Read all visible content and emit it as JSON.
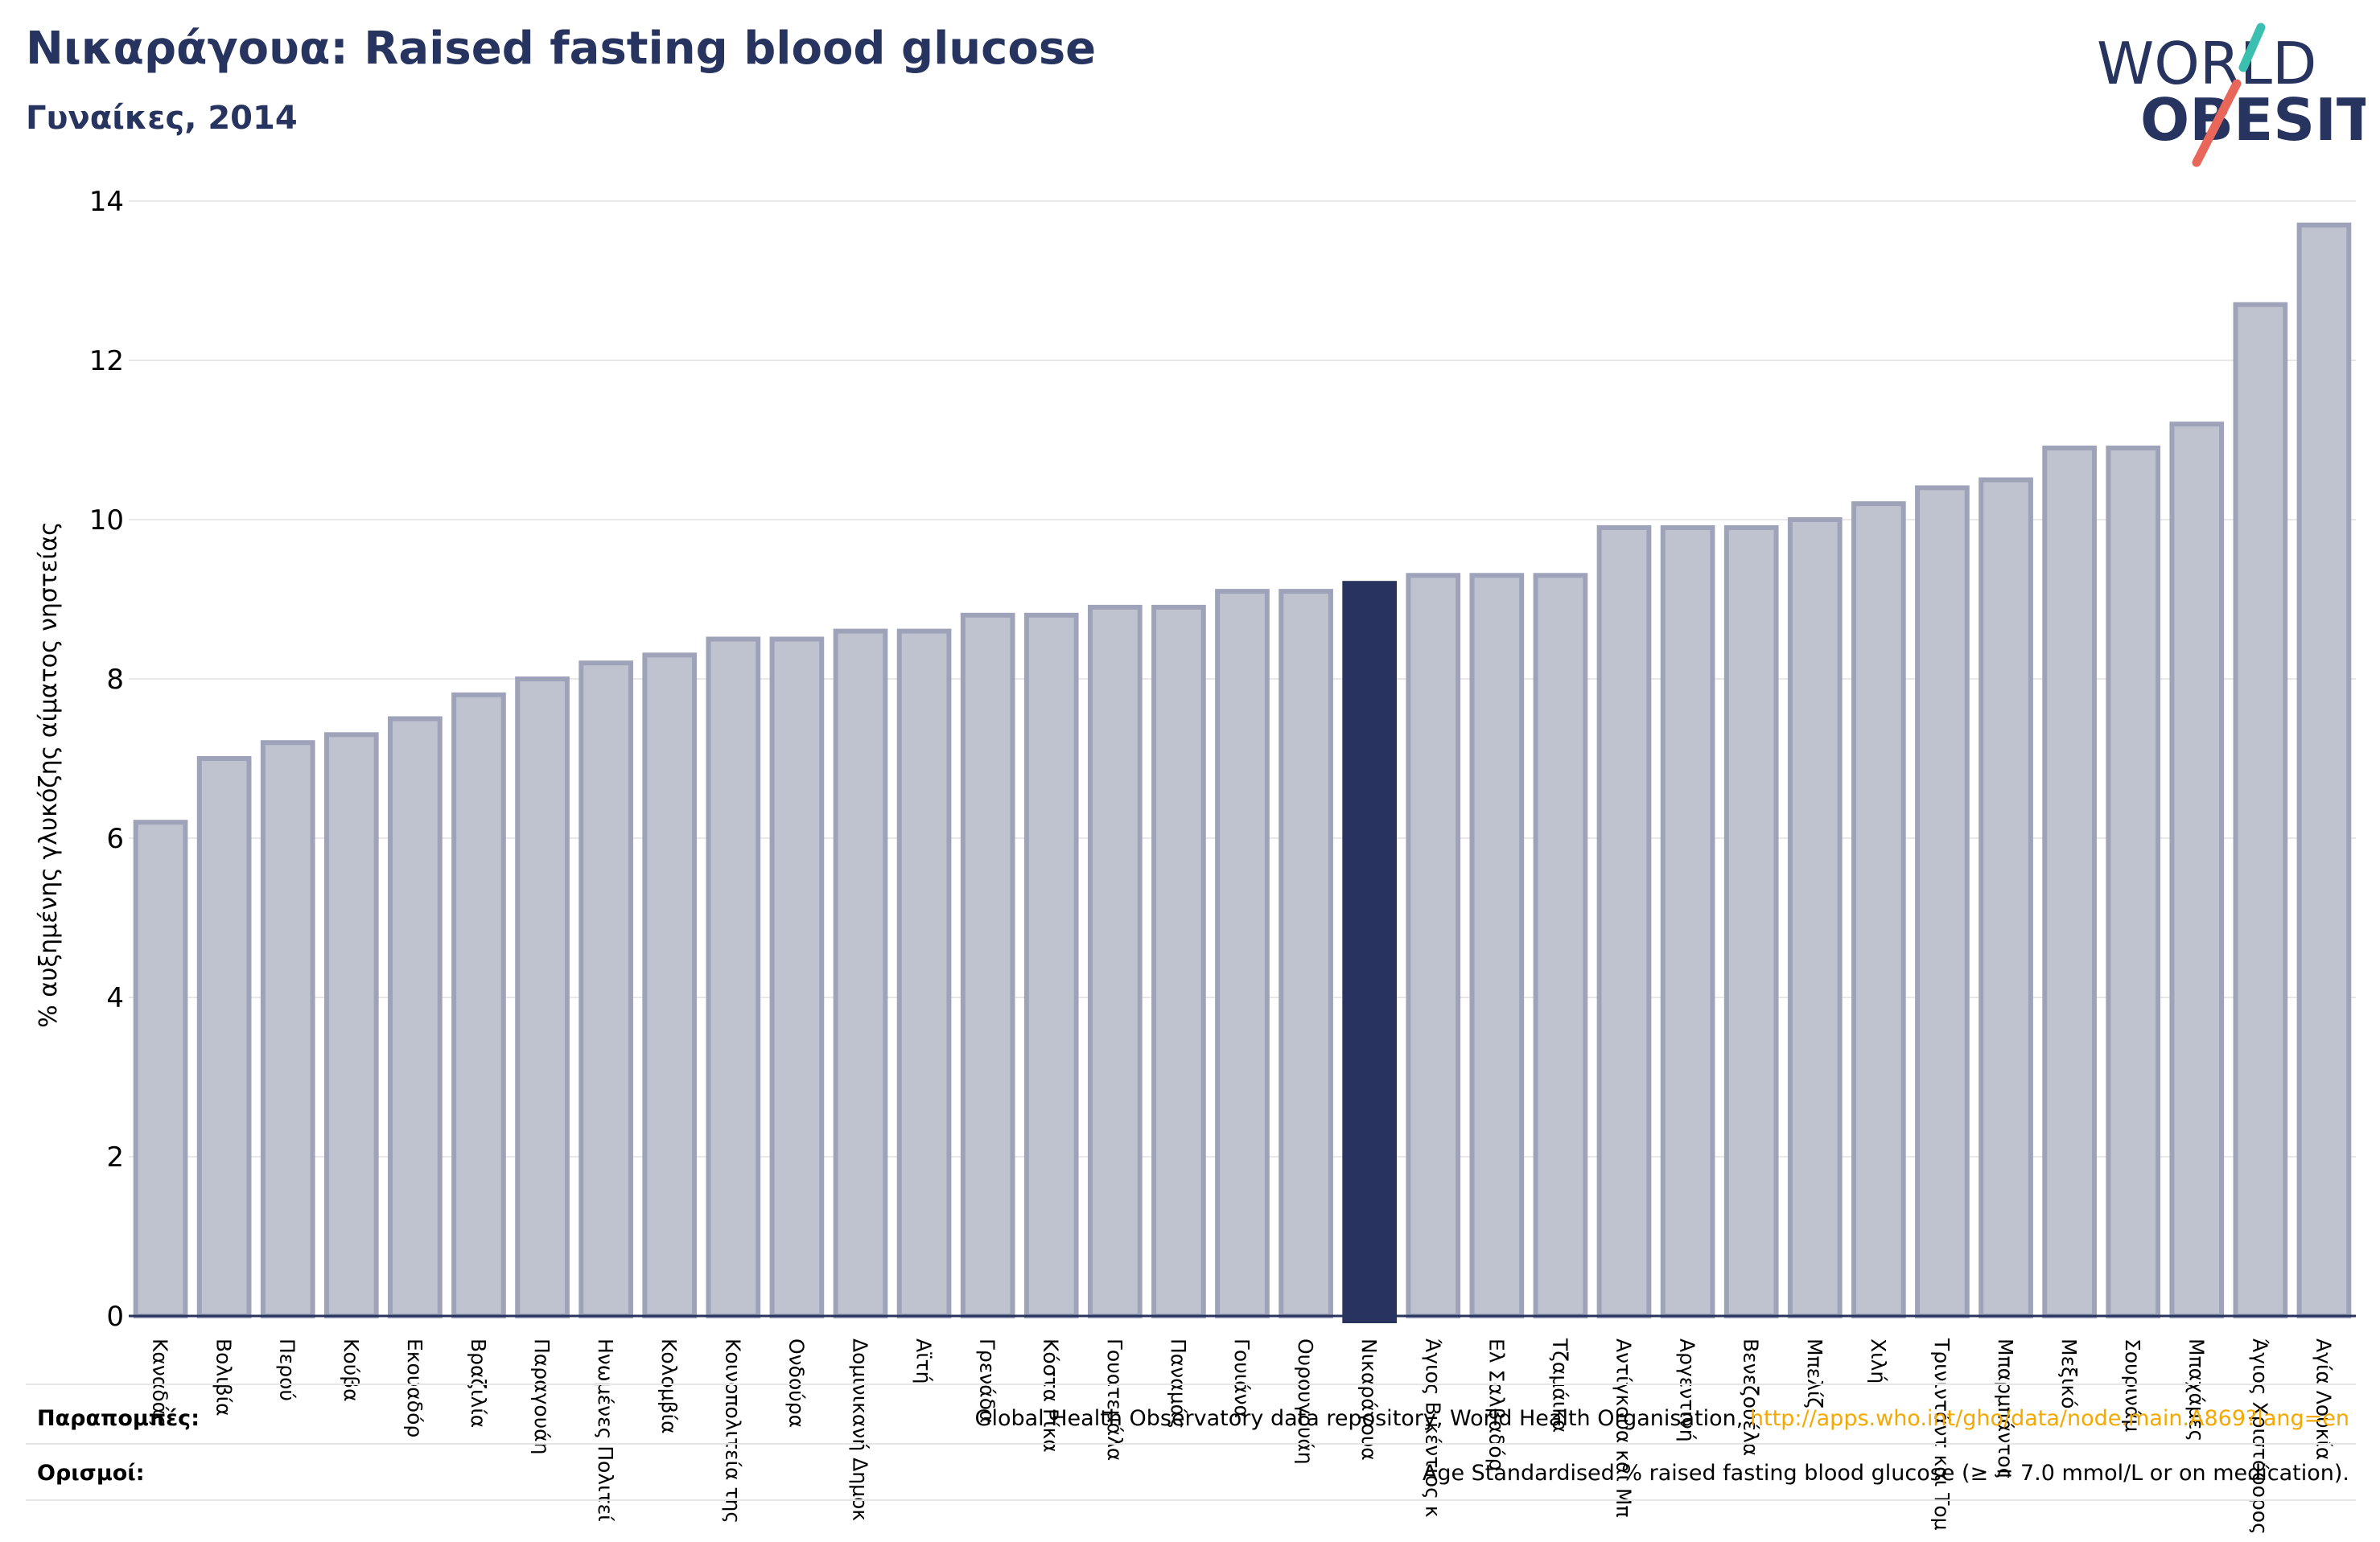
{
  "header": {
    "title": "Νικαράγουα: Raised fasting blood glucose",
    "subtitle": "Γυναίκες, 2014"
  },
  "logo": {
    "line1": "WORLD",
    "line2": "OBESITY"
  },
  "footer": {
    "references_label": "Παραπομπές:",
    "references_text": "Global Health Observatory data repository, World Health Organisation, ",
    "references_link": "http://apps.who.int/gho/data/node.main.A869?lang=en",
    "definitions_label": "Ορισμοί:",
    "definitions_text": "Age Standardised % raised fasting blood glucose (≥ = 7.0 mmol/L or on medication)."
  },
  "colors": {
    "bar_fill": "#bfc2cf",
    "bar_stroke": "#9ea3b9",
    "highlight": "#283360",
    "title": "#273460",
    "grid": "#e8e8e8",
    "logo_text": "#273460",
    "logo_slash_top": "#3bbfb0",
    "logo_slash_bottom": "#e8675a"
  },
  "chart_data": {
    "type": "bar",
    "title": "Νικαράγουα: Raised fasting blood glucose",
    "subtitle": "Γυναίκες, 2014",
    "xlabel": "",
    "ylabel": "% αυξημένης γλυκόζης αίματος νηστείας",
    "ylim": [
      0,
      14
    ],
    "yticks": [
      0,
      2,
      4,
      6,
      8,
      10,
      12,
      14
    ],
    "grid": true,
    "highlight_category": "Νικαράγουα",
    "categories": [
      "Καναδάς",
      "Βολιβία",
      "Περού",
      "Κούβα",
      "Εκουαδόρ",
      "Βραζιλία",
      "Παραγουάη",
      "Ηνωμένες Πολιτείες",
      "Κολομβία",
      "Κοινοπολιτεία της",
      "Ονδούρα",
      "Δομινικανή Δημοκρατία",
      "Αϊτή",
      "Γρενάδα",
      "Κόστα Ρίκα",
      "Γουατεμάλα",
      "Παναμάς",
      "Γουιάνα",
      "Ουρουγουάη",
      "Νικαράγουα",
      "Άγιος Βικέντιος και",
      "Ελ Σαλβαδόρ",
      "Τζαμάικα",
      "Αντίγκουα και Μπαρμπούντα",
      "Αργεντινή",
      "Βενεζουέλα",
      "Μπελίζ",
      "Χιλή",
      "Τρινιντάντ και Τομπάγκο",
      "Μπαρμπάντος",
      "Μεξικό",
      "Σουρινάμ",
      "Μπαχάμες",
      "Άγιος Χριστόφορος",
      "Αγία Λουκία"
    ],
    "tick_labels": [
      "Καναδάς",
      "Βολιβία",
      "Περού",
      "Κούβα",
      "Εκουαδόρ",
      "Βραζιλία",
      "Παραγουάη",
      "Ηνωμένες Πολιτεί",
      "Κολομβία",
      "Κοινοπολιτεία της",
      "Ονδούρα",
      "Δομινικανή Δημοκ",
      "Αϊτή",
      "Γρενάδα",
      "Κόστα Ρίκα",
      "Γουατεμάλα",
      "Παναμάς",
      "Γουιάνα",
      "Ουρουγουάη",
      "Νικαράγουα",
      "Άγιος Βικέντιος κ",
      "Ελ Σαλβαδόρ",
      "Τζαμάικα",
      "Αντίγκουα και Μπ",
      "Αργεντινή",
      "Βενεζουέλα",
      "Μπελίζ",
      "Χιλή",
      "Τρινιντάντ και Τομ",
      "Μπαρμπάντος",
      "Μεξικό",
      "Σουρινάμ",
      "Μπαχάμες",
      "Άγιος Χριστόφορος",
      "Αγία Λουκία"
    ],
    "values": [
      6.2,
      7.0,
      7.2,
      7.3,
      7.5,
      7.8,
      8.0,
      8.2,
      8.3,
      8.5,
      8.5,
      8.6,
      8.6,
      8.8,
      8.8,
      8.9,
      8.9,
      9.1,
      9.1,
      9.2,
      9.3,
      9.3,
      9.3,
      9.9,
      9.9,
      9.9,
      10.0,
      10.2,
      10.4,
      10.5,
      10.9,
      10.9,
      11.2,
      12.7,
      13.7
    ]
  }
}
